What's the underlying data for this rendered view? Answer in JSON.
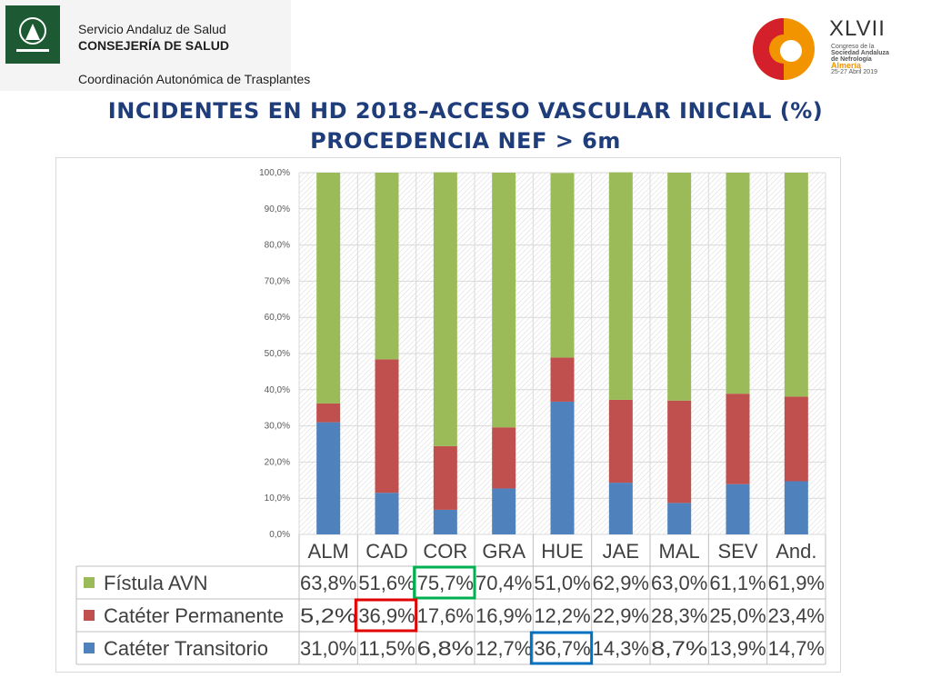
{
  "header": {
    "org_line1": "Servicio Andaluz de Salud",
    "org_line2": "CONSEJERÍA DE SALUD",
    "org_line3": "Coordinación Autonómica de Trasplantes",
    "congress_number": "XLVII",
    "congress_line1": "Congreso de la",
    "congress_line2": "Sociedad Andaluza",
    "congress_line3": "de Nefrología",
    "congress_city": "Almería",
    "congress_dates": "25-27 Abril 2019"
  },
  "title": {
    "line1": "INCIDENTES EN HD 2018–ACCESO VASCULAR INICIAL (%)",
    "line2": "PROCEDENCIA NEF > 6m"
  },
  "chart_data": {
    "type": "bar",
    "stacked": true,
    "categories": [
      "ALM",
      "CAD",
      "COR",
      "GRA",
      "HUE",
      "JAE",
      "MAL",
      "SEV",
      "And."
    ],
    "series": [
      {
        "name": "Catéter Transitorio",
        "color": "#4f81bd",
        "values": [
          31.0,
          11.5,
          6.8,
          12.7,
          36.7,
          14.3,
          8.7,
          13.9,
          14.7
        ],
        "labels": [
          "31,0%",
          "11,5%",
          "6,8%",
          "12,7%",
          "36,7%",
          "14,3%",
          "8,7%",
          "13,9%",
          "14,7%"
        ]
      },
      {
        "name": "Catéter Permanente",
        "color": "#c0504d",
        "values": [
          5.2,
          36.9,
          17.6,
          16.9,
          12.2,
          22.9,
          28.3,
          25.0,
          23.4
        ],
        "labels": [
          "5,2%",
          "36,9%",
          "17,6%",
          "16,9%",
          "12,2%",
          "22,9%",
          "28,3%",
          "25,0%",
          "23,4%"
        ]
      },
      {
        "name": "Fístula AVN",
        "color": "#9bbb59",
        "values": [
          63.8,
          51.6,
          75.7,
          70.4,
          51.0,
          62.9,
          63.0,
          61.1,
          61.9
        ],
        "labels": [
          "63,8%",
          "51,6%",
          "75,7%",
          "70,4%",
          "51,0%",
          "62,9%",
          "63,0%",
          "61,1%",
          "61,9%"
        ]
      }
    ],
    "yticks": [
      "0,0%",
      "10,0%",
      "20,0%",
      "30,0%",
      "40,0%",
      "50,0%",
      "60,0%",
      "70,0%",
      "80,0%",
      "90,0%",
      "100,0%"
    ],
    "ylim": [
      0,
      100
    ],
    "legend_placement": "data-table-below",
    "highlights": [
      {
        "series": "Fístula AVN",
        "category": "COR",
        "color": "#00b050"
      },
      {
        "series": "Catéter Permanente",
        "category": "CAD",
        "color": "#e00000"
      },
      {
        "series": "Catéter Transitorio",
        "category": "HUE",
        "color": "#0070c0"
      }
    ]
  }
}
